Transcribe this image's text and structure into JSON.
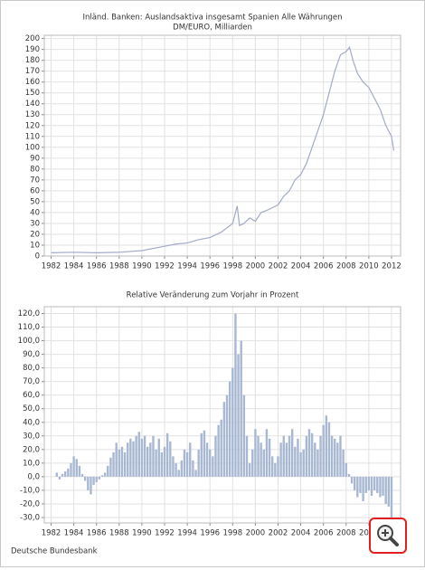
{
  "chart_data": [
    {
      "type": "line",
      "title": "Inländ. Banken: Auslandsaktiva insgesamt Spanien Alle Währungen",
      "subtitle": "DM/EURO, Milliarden",
      "x": [
        1982,
        1984,
        1986,
        1988,
        1990,
        1992,
        1993,
        1994,
        1995,
        1996,
        1997,
        1998,
        1998.4,
        1998.6,
        1999,
        1999.5,
        2000,
        2000.5,
        2001,
        2002,
        2002.5,
        2003,
        2003.5,
        2004,
        2004.5,
        2005,
        2005.5,
        2006,
        2006.5,
        2007,
        2007.5,
        2008,
        2008.3,
        2008.6,
        2009,
        2009.5,
        2010,
        2010.5,
        2011,
        2011.5,
        2012,
        2012.2
      ],
      "values": [
        3,
        3.5,
        3,
        3.5,
        5,
        9,
        11,
        12,
        15,
        17,
        22,
        30,
        46,
        28,
        30,
        35,
        32,
        40,
        42,
        47,
        55,
        60,
        70,
        75,
        85,
        100,
        115,
        130,
        150,
        170,
        185,
        188,
        192,
        180,
        168,
        160,
        155,
        145,
        135,
        120,
        110,
        97
      ],
      "color": "#a3abc9",
      "xlim": [
        1981.4,
        2012.8
      ],
      "xticks": [
        1982,
        1984,
        1986,
        1988,
        1990,
        1992,
        1994,
        1996,
        1998,
        2000,
        2002,
        2004,
        2006,
        2008,
        2010,
        2012
      ],
      "ylim": [
        0,
        203
      ],
      "yticks": [
        0,
        10,
        20,
        30,
        40,
        50,
        60,
        70,
        80,
        90,
        100,
        110,
        120,
        130,
        140,
        150,
        160,
        170,
        180,
        190,
        200
      ],
      "grid": true
    },
    {
      "type": "bar",
      "title": "Relative Veränderung zum Vorjahr in Prozent",
      "x": [
        1982.5,
        1982.75,
        1983,
        1983.25,
        1983.5,
        1983.75,
        1984,
        1984.25,
        1984.5,
        1984.75,
        1985,
        1985.25,
        1985.5,
        1985.75,
        1986,
        1986.25,
        1986.5,
        1986.75,
        1987,
        1987.25,
        1987.5,
        1987.75,
        1988,
        1988.25,
        1988.5,
        1988.75,
        1989,
        1989.25,
        1989.5,
        1989.75,
        1990,
        1990.25,
        1990.5,
        1990.75,
        1991,
        1991.25,
        1991.5,
        1991.75,
        1992,
        1992.25,
        1992.5,
        1992.75,
        1993,
        1993.25,
        1993.5,
        1993.75,
        1994,
        1994.25,
        1994.5,
        1994.75,
        1995,
        1995.25,
        1995.5,
        1995.75,
        1996,
        1996.25,
        1996.5,
        1996.75,
        1997,
        1997.25,
        1997.5,
        1997.75,
        1998,
        1998.25,
        1998.5,
        1998.75,
        1999,
        1999.25,
        1999.5,
        1999.75,
        2000,
        2000.25,
        2000.5,
        2000.75,
        2001,
        2001.25,
        2001.5,
        2001.75,
        2002,
        2002.25,
        2002.5,
        2002.75,
        2003,
        2003.25,
        2003.5,
        2003.75,
        2004,
        2004.25,
        2004.5,
        2004.75,
        2005,
        2005.25,
        2005.5,
        2005.75,
        2006,
        2006.25,
        2006.5,
        2006.75,
        2007,
        2007.25,
        2007.5,
        2007.75,
        2008,
        2008.25,
        2008.5,
        2008.75,
        2009,
        2009.25,
        2009.5,
        2009.75,
        2010,
        2010.25,
        2010.5,
        2010.75,
        2011,
        2011.25,
        2011.5,
        2011.75,
        2012
      ],
      "values": [
        3,
        -2,
        2,
        4,
        6,
        10,
        15,
        13,
        8,
        2,
        -3,
        -10,
        -13,
        -6,
        -4,
        -2,
        1,
        3,
        8,
        14,
        18,
        25,
        20,
        22,
        18,
        25,
        28,
        26,
        30,
        33,
        28,
        30,
        22,
        25,
        30,
        20,
        28,
        18,
        22,
        32,
        26,
        15,
        10,
        5,
        12,
        20,
        18,
        25,
        12,
        5,
        20,
        32,
        34,
        25,
        20,
        15,
        30,
        38,
        42,
        55,
        60,
        70,
        80,
        120,
        90,
        100,
        60,
        30,
        10,
        20,
        35,
        30,
        25,
        20,
        35,
        28,
        15,
        10,
        15,
        25,
        30,
        25,
        30,
        35,
        22,
        28,
        18,
        20,
        30,
        35,
        32,
        25,
        20,
        30,
        38,
        45,
        40,
        30,
        28,
        25,
        30,
        20,
        10,
        2,
        -5,
        -10,
        -15,
        -12,
        -18,
        -12,
        -10,
        -14,
        -10,
        -12,
        -15,
        -14,
        -20,
        -22,
        -30
      ],
      "color": "#a9b8d2",
      "xlim": [
        1981.4,
        2012.8
      ],
      "xticks": [
        1982,
        1984,
        1986,
        1988,
        1990,
        1992,
        1994,
        1996,
        1998,
        2000,
        2002,
        2004,
        2006,
        2008,
        2010,
        2012
      ],
      "ylim": [
        -34,
        125
      ],
      "yticks": [
        {
          "value": -30,
          "label": "-30,0"
        },
        {
          "value": -20,
          "label": "-20,0"
        },
        {
          "value": -10,
          "label": "-10,0"
        },
        {
          "value": 0,
          "label": "0,0"
        },
        {
          "value": 10,
          "label": "10,0"
        },
        {
          "value": 20,
          "label": "20,0"
        },
        {
          "value": 30,
          "label": "30,0"
        },
        {
          "value": 40,
          "label": "40,0"
        },
        {
          "value": 50,
          "label": "50,0"
        },
        {
          "value": 60,
          "label": "60,0"
        },
        {
          "value": 70,
          "label": "70,0"
        },
        {
          "value": 80,
          "label": "80,0"
        },
        {
          "value": 90,
          "label": "90,0"
        },
        {
          "value": 100,
          "label": "100,0"
        },
        {
          "value": 110,
          "label": "110,0"
        },
        {
          "value": 120,
          "label": "120,0"
        }
      ],
      "grid": true
    }
  ],
  "source": "Deutsche Bundesbank"
}
